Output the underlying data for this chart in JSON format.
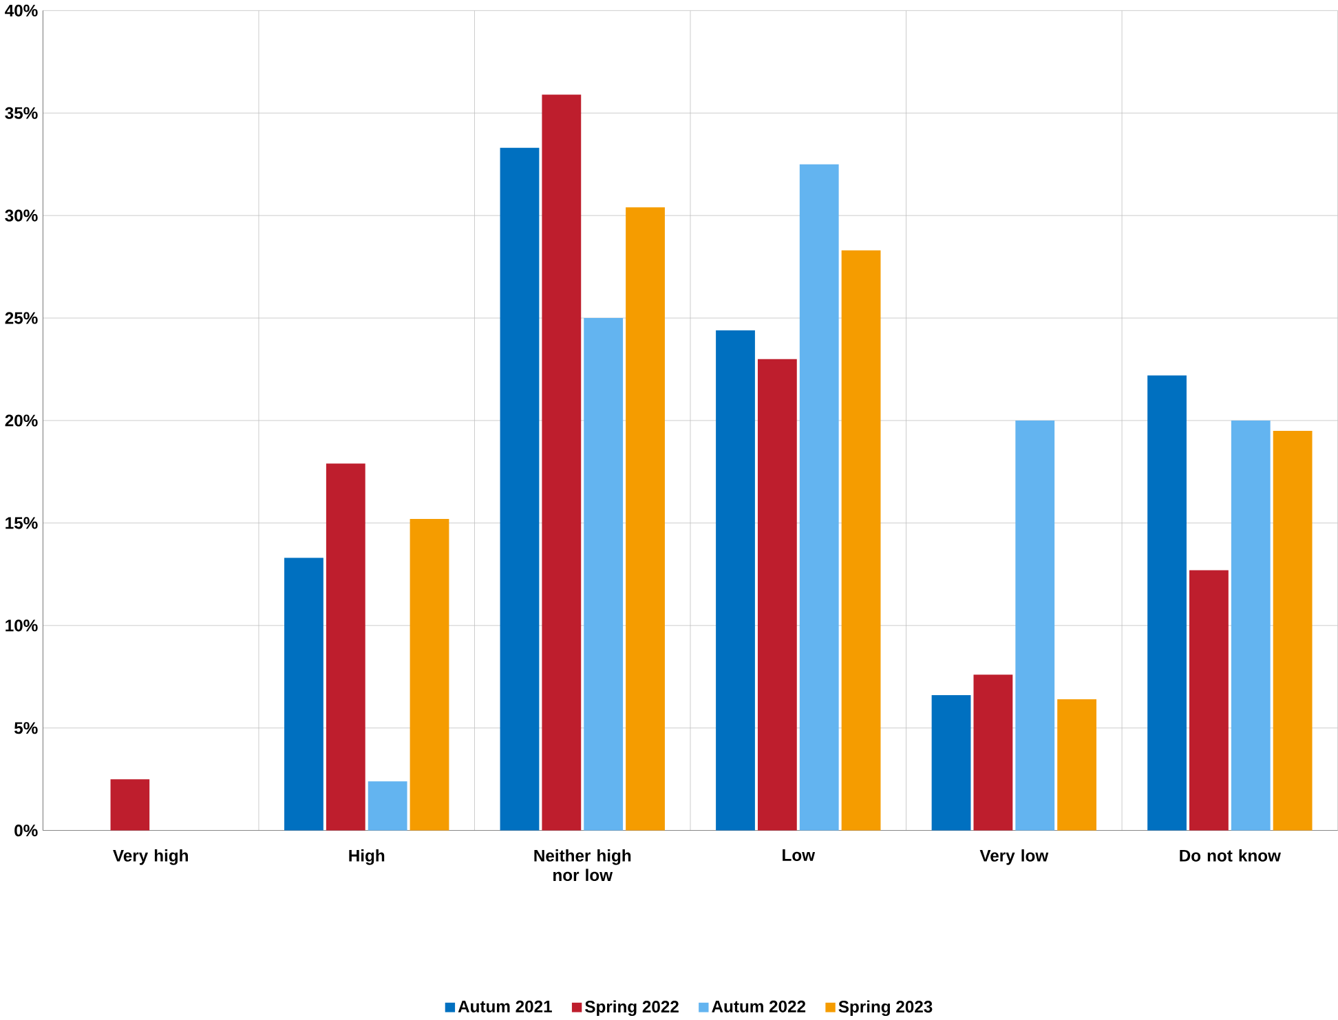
{
  "chart_data": {
    "type": "bar",
    "categories": [
      "Very high",
      "High",
      "Neither high nor low",
      "Low",
      "Very low",
      "Do not know"
    ],
    "series": [
      {
        "name": "Autum 2021",
        "color": "#0070c0",
        "values": [
          null,
          13.3,
          33.3,
          24.4,
          6.6,
          22.2
        ]
      },
      {
        "name": "Spring 2022",
        "color": "#be1e2d",
        "values": [
          2.5,
          17.9,
          35.9,
          23.0,
          7.6,
          12.7
        ]
      },
      {
        "name": "Autum 2022",
        "color": "#63b4f0",
        "values": [
          null,
          2.4,
          25.0,
          32.5,
          20.0,
          20.0
        ]
      },
      {
        "name": "Spring 2023",
        "color": "#f59c00",
        "values": [
          null,
          15.2,
          30.4,
          28.3,
          6.4,
          19.5
        ]
      }
    ],
    "ylim": [
      0,
      40
    ],
    "yticks": [
      {
        "value": 0,
        "label": "0%"
      },
      {
        "value": 5,
        "label": "5%"
      },
      {
        "value": 10,
        "label": "10%"
      },
      {
        "value": 15,
        "label": "15%"
      },
      {
        "value": 20,
        "label": "20%"
      },
      {
        "value": 25,
        "label": "25%"
      },
      {
        "value": 30,
        "label": "30%"
      },
      {
        "value": 35,
        "label": "35%"
      },
      {
        "value": 40,
        "label": "40%"
      }
    ],
    "grid": true,
    "legend": "bottom"
  }
}
